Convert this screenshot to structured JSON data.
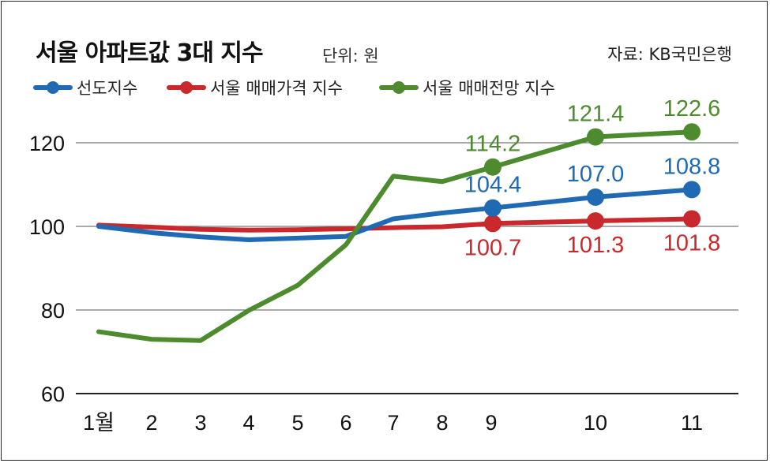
{
  "header": {
    "title": "서울 아파트값 3대 지수",
    "unit": "단위: 원",
    "source": "자료: KB국민은행"
  },
  "chart_data": {
    "type": "line",
    "title": "서울 아파트값 3대 지수",
    "xlabel": "",
    "ylabel": "",
    "categories": [
      "1월",
      "2",
      "3",
      "4",
      "5",
      "6",
      "7",
      "8",
      "9",
      "10",
      "11"
    ],
    "ylim": [
      60,
      125
    ],
    "yticks": [
      60,
      80,
      100,
      120
    ],
    "grid": true,
    "legend_placement": "top-left",
    "series": [
      {
        "name": "선도지수",
        "color": "#1f6ab3",
        "values": [
          100.0,
          98.5,
          97.5,
          96.8,
          97.2,
          97.6,
          101.8,
          103.2,
          104.4,
          107.0,
          108.8
        ],
        "labels": {
          "8": "104.4",
          "9": "107.0",
          "10": "108.8"
        }
      },
      {
        "name": "서울 매매가격 지수",
        "color": "#c9282c",
        "values": [
          100.3,
          99.8,
          99.3,
          99.1,
          99.2,
          99.4,
          99.7,
          99.9,
          100.7,
          101.3,
          101.8
        ],
        "labels": {
          "8": "100.7",
          "9": "101.3",
          "10": "101.8"
        }
      },
      {
        "name": "서울 매매전망 지수",
        "color": "#4e8b2e",
        "values": [
          74.8,
          73.0,
          72.7,
          79.9,
          85.9,
          95.6,
          112.0,
          110.7,
          114.2,
          121.4,
          122.6
        ],
        "labels": {
          "8": "114.2",
          "9": "121.4",
          "10": "122.6"
        }
      }
    ]
  }
}
